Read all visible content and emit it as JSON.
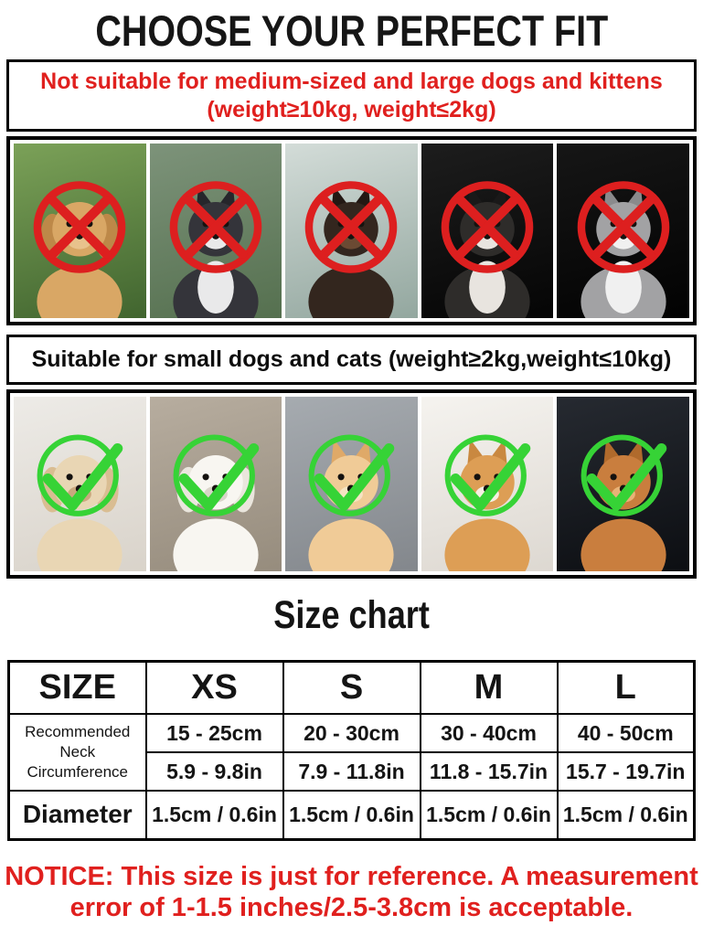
{
  "title": "CHOOSE YOUR PERFECT FIT",
  "colors": {
    "red_text": "#e0201e",
    "red_mark": "#dd1f1f",
    "green_mark": "#36d336",
    "border": "#000000"
  },
  "not_suitable": {
    "lines": [
      "Not suitable for medium-sized and large dogs and kittens",
      "(weight≥10kg, weight≤2kg)"
    ],
    "mark": "cross",
    "pets": [
      {
        "name": "golden-retriever",
        "ears": "floppy",
        "bg": [
          "#7ba158",
          "#41652f"
        ],
        "fur": "#d9a765",
        "ear": "#bd8848",
        "muzzle": "#e8c28c"
      },
      {
        "name": "siberian-husky",
        "ears": "pointy",
        "bg": [
          "#7d937a",
          "#55704f"
        ],
        "fur": "#34343a",
        "ear": "#26262b",
        "muzzle": "#e9e9ea",
        "chest": "#e9e9ea"
      },
      {
        "name": "doberman",
        "ears": "pointy",
        "bg": [
          "#d3dcd8",
          "#93a79f"
        ],
        "fur": "#33261e",
        "ear": "#231813",
        "muzzle": "#6b4a33"
      },
      {
        "name": "border-collie",
        "ears": "pointy",
        "bg": [
          "#1d1d1d",
          "#050505"
        ],
        "fur": "#2e2c2a",
        "ear": "#1a1919",
        "muzzle": "#e8e4df",
        "chest": "#e8e4df"
      },
      {
        "name": "gray-kitten",
        "ears": "pointy",
        "bg": [
          "#161616",
          "#020202"
        ],
        "fur": "#a2a2a4",
        "ear": "#8a8a8c",
        "muzzle": "#f0f0f0",
        "chest": "#f0f0f0"
      }
    ]
  },
  "suitable": {
    "lines": [
      "Suitable for small dogs and cats (weight≥2kg,weight≤10kg)"
    ],
    "mark": "check",
    "pets": [
      {
        "name": "cream-poodle",
        "ears": "floppy",
        "bg": [
          "#edebe7",
          "#d9d3ca"
        ],
        "fur": "#e9d6b4",
        "ear": "#d9bd92",
        "muzzle": "#caa87e"
      },
      {
        "name": "bichon-frise",
        "ears": "floppy",
        "bg": [
          "#b7ad9f",
          "#968c7d"
        ],
        "fur": "#f8f6f1",
        "ear": "#eae6dd",
        "muzzle": "#d9d4c9"
      },
      {
        "name": "pomeranian",
        "ears": "pointy",
        "bg": [
          "#a6abb0",
          "#83878c"
        ],
        "fur": "#f0cb97",
        "ear": "#dfa968",
        "muzzle": "#f6e3c2"
      },
      {
        "name": "corgi",
        "ears": "pointy",
        "bg": [
          "#f5f3ef",
          "#ddd8d1"
        ],
        "fur": "#dd9e55",
        "ear": "#c98840",
        "muzzle": "#f7efe3"
      },
      {
        "name": "orange-cat",
        "ears": "pointy",
        "bg": [
          "#262a31",
          "#0c0e12"
        ],
        "fur": "#c97e3e",
        "ear": "#b06a2c",
        "muzzle": "#e8b277"
      }
    ]
  },
  "size_chart": {
    "heading": "Size chart",
    "columns": [
      "SIZE",
      "XS",
      "S",
      "M",
      "L"
    ],
    "neck_label": "Recommended Neck Circumference",
    "neck_cm": [
      "15 - 25cm",
      "20 - 30cm",
      "30 - 40cm",
      "40 - 50cm"
    ],
    "neck_in": [
      "5.9 - 9.8in",
      "7.9 - 11.8in",
      "11.8 - 15.7in",
      "15.7 - 19.7in"
    ],
    "diameter_label": "Diameter",
    "diameter": [
      "1.5cm / 0.6in",
      "1.5cm / 0.6in",
      "1.5cm / 0.6in",
      "1.5cm / 0.6in"
    ]
  },
  "notice": {
    "lines": [
      "NOTICE: This size is just for reference. A measurement",
      "error of 1-1.5 inches/2.5-3.8cm is acceptable."
    ]
  }
}
